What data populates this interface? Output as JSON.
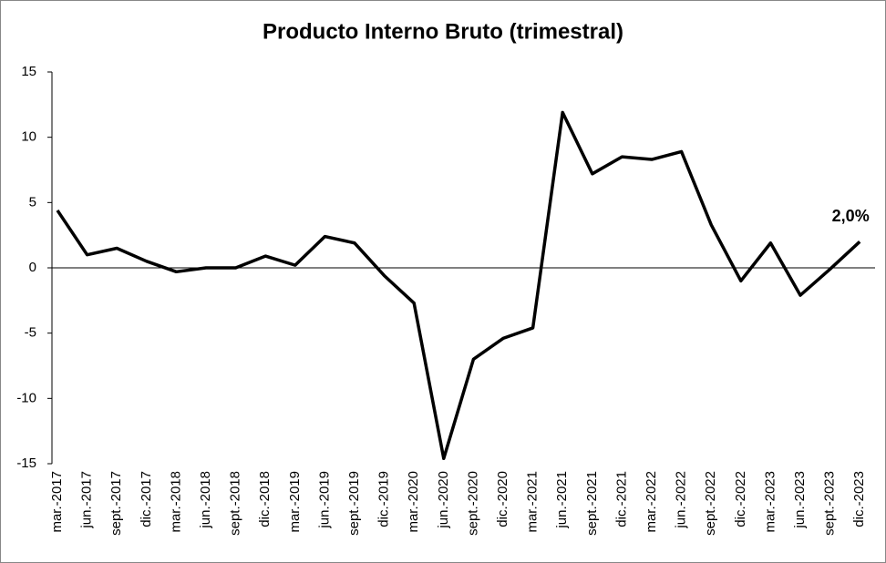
{
  "chart_data": {
    "type": "line",
    "title": "Producto Interno Bruto (trimestral)",
    "categories": [
      "mar.-2017",
      "jun.-2017",
      "sept.-2017",
      "dic.-2017",
      "mar.-2018",
      "jun.-2018",
      "sept.-2018",
      "dic.-2018",
      "mar.-2019",
      "jun.-2019",
      "sept.-2019",
      "dic.-2019",
      "mar.-2020",
      "jun.-2020",
      "sept.-2020",
      "dic.-2020",
      "mar.-2021",
      "jun.-2021",
      "sept.-2021",
      "dic.-2021",
      "mar.-2022",
      "jun.-2022",
      "sept.-2022",
      "dic.-2022",
      "mar.-2023",
      "jun.-2023",
      "sept.-2023",
      "dic.-2023"
    ],
    "values": [
      4.4,
      1.0,
      1.5,
      0.5,
      -0.3,
      0.0,
      0.0,
      0.9,
      0.2,
      2.4,
      1.9,
      -0.6,
      -2.7,
      -14.6,
      -7.0,
      -5.4,
      -4.6,
      11.9,
      7.2,
      8.5,
      8.3,
      8.9,
      3.3,
      -1.0,
      1.9,
      -2.1,
      -0.1,
      2.0
    ],
    "value_labels": [
      null,
      null,
      null,
      null,
      null,
      null,
      null,
      null,
      null,
      null,
      null,
      null,
      null,
      null,
      null,
      null,
      null,
      null,
      null,
      null,
      null,
      null,
      null,
      null,
      null,
      null,
      null,
      "2,0%"
    ],
    "color": "#000000",
    "ylim": [
      -15,
      15
    ],
    "yticks": [
      -15,
      -10,
      -5,
      0,
      5,
      10,
      15
    ]
  }
}
